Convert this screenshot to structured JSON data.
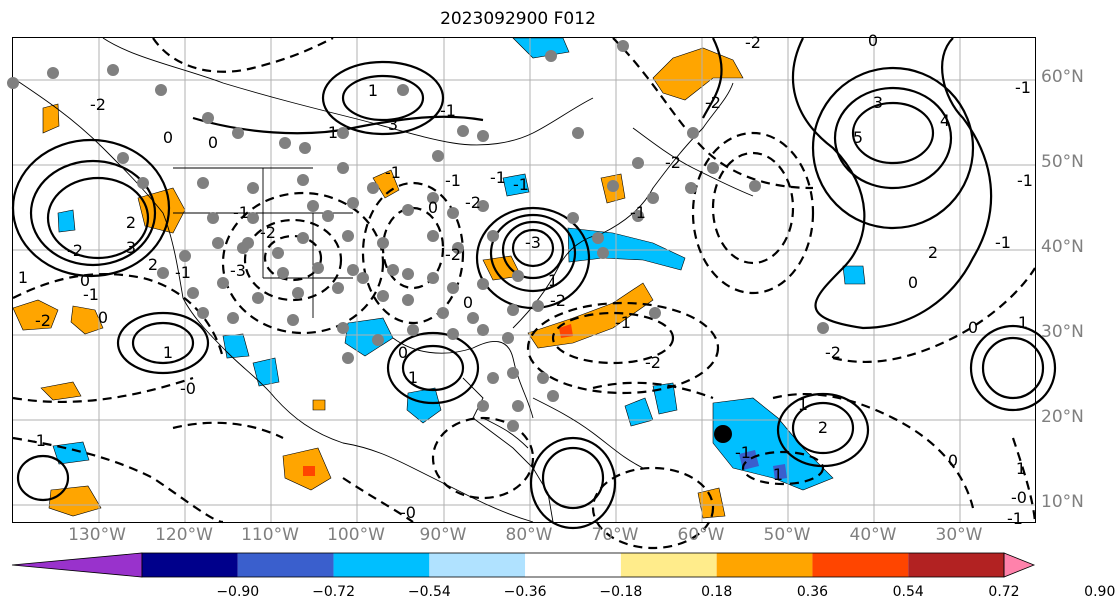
{
  "title": "2023092900 F012",
  "lat_labels": [
    "60°N",
    "50°N",
    "40°N",
    "30°N",
    "20°N",
    "10°N"
  ],
  "lon_labels": [
    "130°W",
    "120°W",
    "110°W",
    "100°W",
    "90°W",
    "80°W",
    "70°W",
    "60°W",
    "50°W",
    "40°W",
    "30°W"
  ],
  "colorbar": {
    "colors": [
      "#9932cc",
      "#00008b",
      "#3a5fcd",
      "#00bfff",
      "#b0e2ff",
      "#ffffff",
      "#ffec8b",
      "#ffa500",
      "#ff4500",
      "#b22222",
      "#ff82ab"
    ],
    "ticks": [
      "−0.90",
      "−0.72",
      "−0.54",
      "−0.36",
      "−0.18",
      "0.18",
      "0.36",
      "0.54",
      "0.72",
      "0.90"
    ]
  },
  "contour_labels": [
    "-2",
    "0",
    "-1",
    "0",
    "1",
    "-2",
    "2",
    "1",
    "-0",
    "2",
    "3",
    "-1",
    "0",
    "-3",
    "-1",
    "-2",
    "1",
    "3",
    "-1",
    "-2",
    "-2",
    "0",
    "-1",
    "-3",
    "1",
    "-1",
    "-2",
    "3",
    "4",
    "5",
    "0",
    "2",
    "-1",
    "-1",
    "-1",
    "0",
    "1",
    "0",
    "-1",
    "-0",
    "1",
    "1",
    "-1",
    "2",
    "0",
    "1",
    "-0",
    "-1",
    "0",
    "-2",
    "-2",
    "-2",
    "1",
    "-1",
    "-1",
    "0",
    "-1",
    "-2",
    "-2",
    "0",
    "1",
    "-2",
    "-1"
  ],
  "marker": "storm-center"
}
